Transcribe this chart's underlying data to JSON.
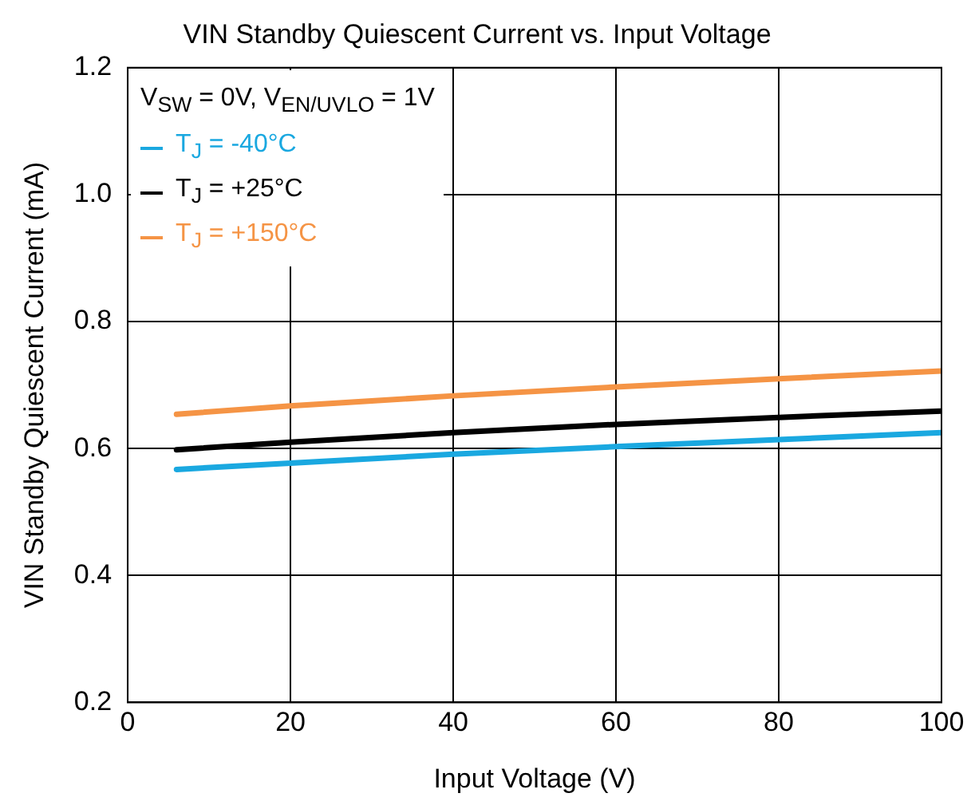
{
  "chart_data": {
    "type": "line",
    "title": "VIN Standby Quiescent Current vs. Input Voltage",
    "xlabel": "Input Voltage (V)",
    "ylabel": "VIN Standby Quiescent Current (mA)",
    "legend_title": "V$_{SW}$ = 0V, V$_{EN/UVLO}$ = 1V",
    "x": [
      6,
      20,
      40,
      60,
      80,
      100
    ],
    "series": [
      {
        "name": "T$_{J}$ = -40°C",
        "color": "#1aa8e0",
        "values": [
          0.567,
          0.577,
          0.591,
          0.603,
          0.614,
          0.625
        ]
      },
      {
        "name": "T$_{J}$ = +25°C",
        "color": "#000000",
        "values": [
          0.598,
          0.61,
          0.625,
          0.638,
          0.649,
          0.659
        ]
      },
      {
        "name": "T$_{J}$ = +150°C",
        "color": "#f59445",
        "values": [
          0.654,
          0.667,
          0.683,
          0.697,
          0.71,
          0.722
        ]
      }
    ],
    "xlim": [
      0,
      100
    ],
    "xticks": [
      0,
      20,
      40,
      60,
      80,
      100
    ],
    "ylim": [
      0.2,
      1.2
    ],
    "yticks": [
      0.2,
      0.4,
      0.6,
      0.8,
      {
        "value": 1,
        "label": "1.0"
      },
      1.2
    ],
    "grid": true,
    "legend": "top left",
    "marker": "none",
    "line_style": "solid"
  }
}
